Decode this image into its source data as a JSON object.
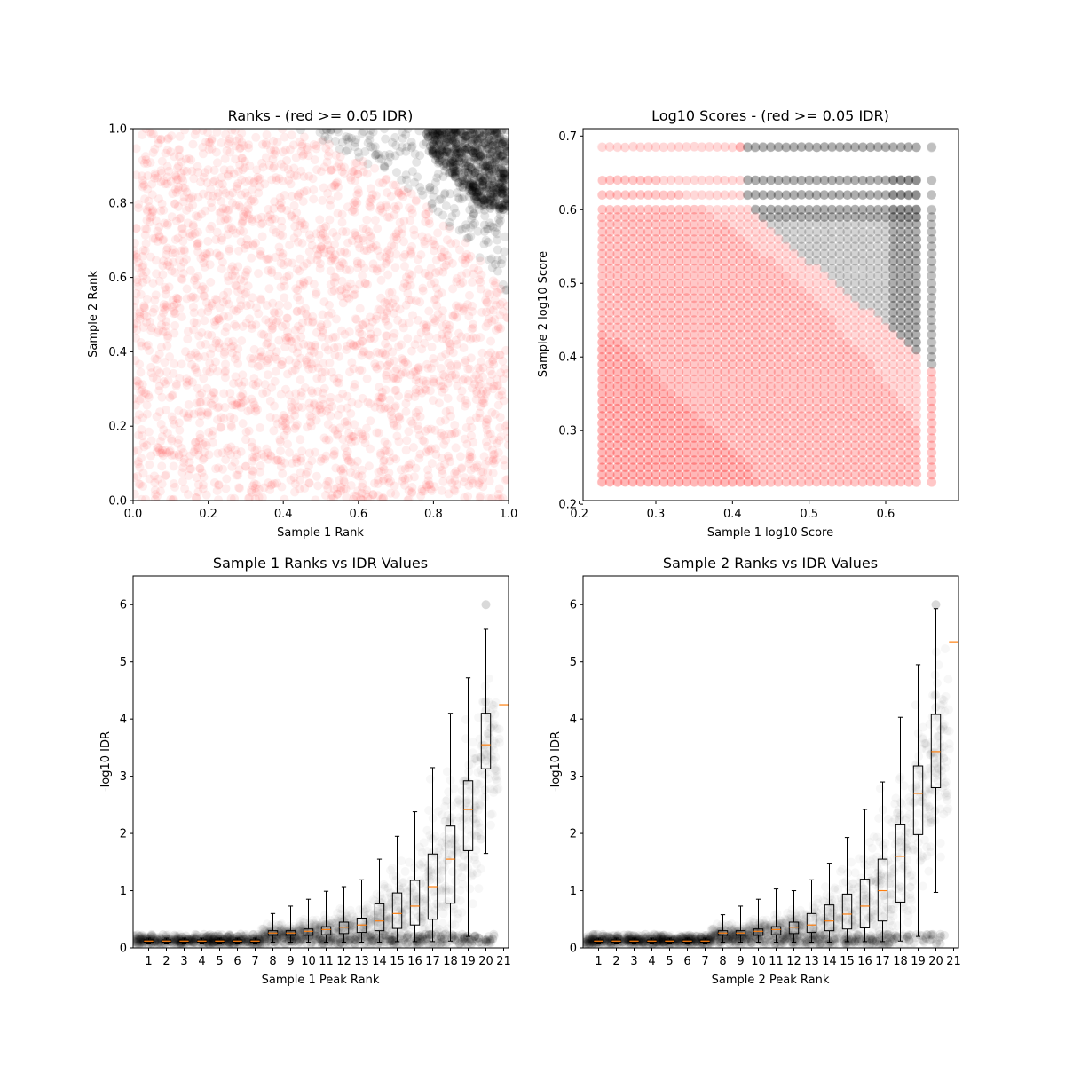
{
  "chart_data": [
    {
      "type": "scatter",
      "title": "Ranks - (red >= 0.05 IDR)",
      "xlabel": "Sample 1 Rank",
      "ylabel": "Sample 2 Rank",
      "xlim": [
        0.0,
        1.0
      ],
      "ylim": [
        0.0,
        1.0
      ],
      "x_ticks": [
        "0.0",
        "0.2",
        "0.4",
        "0.6",
        "0.8",
        "1.0"
      ],
      "y_ticks": [
        "0.0",
        "0.2",
        "0.4",
        "0.6",
        "0.8",
        "1.0"
      ],
      "grid": false,
      "legend": "none",
      "colors": {
        "high_idr": "#ff0000",
        "low_idr": "#000000"
      },
      "boundary": [
        [
          0.0,
          1.08
        ],
        [
          0.2,
          1.06
        ],
        [
          0.4,
          1.02
        ],
        [
          0.6,
          0.92
        ],
        [
          0.7,
          0.86
        ],
        [
          0.8,
          0.78
        ],
        [
          0.9,
          0.68
        ],
        [
          1.0,
          0.55
        ]
      ],
      "series": [
        {
          "name": "red >= 0.05 IDR",
          "color": "#ff0000",
          "region": "below_boundary"
        },
        {
          "color": "#000000",
          "region": "above_boundary"
        }
      ]
    },
    {
      "type": "scatter",
      "title": "Log10 Scores - (red >= 0.05 IDR)",
      "xlabel": "Sample 1 log10 Score",
      "ylabel": "Sample 2 log10 Score",
      "xlim": [
        0.205,
        0.695
      ],
      "ylim": [
        0.205,
        0.71
      ],
      "x_ticks": [
        "0.2",
        "0.3",
        "0.4",
        "0.5",
        "0.6"
      ],
      "y_ticks": [
        "0.2",
        "0.3",
        "0.4",
        "0.5",
        "0.6",
        "0.7"
      ],
      "grid": false,
      "legend": "none",
      "score_levels_x": [
        0.23,
        0.24,
        0.25,
        0.26,
        0.27,
        0.28,
        0.29,
        0.3,
        0.31,
        0.32,
        0.33,
        0.34,
        0.35,
        0.36,
        0.37,
        0.38,
        0.39,
        0.4,
        0.41,
        0.42,
        0.43,
        0.44,
        0.45,
        0.46,
        0.47,
        0.48,
        0.49,
        0.5,
        0.51,
        0.52,
        0.53,
        0.54,
        0.55,
        0.56,
        0.57,
        0.58,
        0.59,
        0.6,
        0.61,
        0.62,
        0.63,
        0.64,
        0.66
      ],
      "score_levels_y": [
        0.23,
        0.24,
        0.25,
        0.26,
        0.27,
        0.28,
        0.29,
        0.3,
        0.31,
        0.32,
        0.33,
        0.34,
        0.35,
        0.36,
        0.37,
        0.38,
        0.39,
        0.4,
        0.41,
        0.42,
        0.43,
        0.44,
        0.45,
        0.46,
        0.47,
        0.48,
        0.49,
        0.5,
        0.51,
        0.52,
        0.53,
        0.54,
        0.55,
        0.56,
        0.57,
        0.58,
        0.59,
        0.6,
        0.62,
        0.64,
        0.685
      ],
      "boundary": [
        [
          0.42,
          0.605
        ],
        [
          0.45,
          0.58
        ],
        [
          0.5,
          0.53
        ],
        [
          0.55,
          0.485
        ],
        [
          0.6,
          0.445
        ],
        [
          0.64,
          0.41
        ],
        [
          0.66,
          0.39
        ]
      ]
    },
    {
      "type": "box",
      "title": "Sample 1 Ranks vs IDR Values",
      "xlabel": "Sample 1 Peak Rank",
      "ylabel": "-log10 IDR",
      "ylim": [
        0,
        6.5
      ],
      "categories": [
        "1",
        "2",
        "3",
        "4",
        "5",
        "6",
        "7",
        "8",
        "9",
        "10",
        "11",
        "12",
        "13",
        "14",
        "15",
        "16",
        "17",
        "18",
        "19",
        "20",
        "21"
      ],
      "y_ticks": [
        "0",
        "1",
        "2",
        "3",
        "4",
        "5",
        "6"
      ],
      "boxes": [
        {
          "q1": 0.1,
          "median": 0.12,
          "q3": 0.14,
          "whislo": 0.07,
          "whishi": 0.17
        },
        {
          "q1": 0.1,
          "median": 0.12,
          "q3": 0.14,
          "whislo": 0.07,
          "whishi": 0.17
        },
        {
          "q1": 0.1,
          "median": 0.12,
          "q3": 0.14,
          "whislo": 0.07,
          "whishi": 0.17
        },
        {
          "q1": 0.1,
          "median": 0.12,
          "q3": 0.14,
          "whislo": 0.07,
          "whishi": 0.17
        },
        {
          "q1": 0.1,
          "median": 0.12,
          "q3": 0.14,
          "whislo": 0.07,
          "whishi": 0.17
        },
        {
          "q1": 0.1,
          "median": 0.12,
          "q3": 0.14,
          "whislo": 0.07,
          "whishi": 0.17
        },
        {
          "q1": 0.1,
          "median": 0.12,
          "q3": 0.14,
          "whislo": 0.07,
          "whishi": 0.17
        },
        {
          "q1": 0.22,
          "median": 0.26,
          "q3": 0.3,
          "whislo": 0.1,
          "whishi": 0.6
        },
        {
          "q1": 0.22,
          "median": 0.26,
          "q3": 0.3,
          "whislo": 0.1,
          "whishi": 0.73
        },
        {
          "q1": 0.22,
          "median": 0.29,
          "q3": 0.33,
          "whislo": 0.1,
          "whishi": 0.85
        },
        {
          "q1": 0.23,
          "median": 0.32,
          "q3": 0.37,
          "whislo": 0.1,
          "whishi": 0.99
        },
        {
          "q1": 0.25,
          "median": 0.36,
          "q3": 0.45,
          "whislo": 0.1,
          "whishi": 1.07
        },
        {
          "q1": 0.27,
          "median": 0.4,
          "q3": 0.52,
          "whislo": 0.1,
          "whishi": 1.19
        },
        {
          "q1": 0.3,
          "median": 0.47,
          "q3": 0.77,
          "whislo": 0.1,
          "whishi": 1.55
        },
        {
          "q1": 0.34,
          "median": 0.6,
          "q3": 0.96,
          "whislo": 0.11,
          "whishi": 1.95
        },
        {
          "q1": 0.4,
          "median": 0.73,
          "q3": 1.18,
          "whislo": 0.11,
          "whishi": 2.38
        },
        {
          "q1": 0.5,
          "median": 1.07,
          "q3": 1.64,
          "whislo": 0.11,
          "whishi": 3.15
        },
        {
          "q1": 0.78,
          "median": 1.55,
          "q3": 2.13,
          "whislo": 0.12,
          "whishi": 4.1
        },
        {
          "q1": 1.7,
          "median": 2.42,
          "q3": 2.92,
          "whislo": 0.2,
          "whishi": 4.72
        },
        {
          "q1": 3.13,
          "median": 3.55,
          "q3": 4.1,
          "whislo": 1.65,
          "whishi": 5.57
        },
        {
          "q1": 4.25,
          "median": 4.25,
          "q3": 4.25,
          "whislo": 4.25,
          "whishi": 4.25
        }
      ]
    },
    {
      "type": "box",
      "title": "Sample 2 Ranks vs IDR Values",
      "xlabel": "Sample 2 Peak Rank",
      "ylabel": "-log10 IDR",
      "ylim": [
        0,
        6.5
      ],
      "categories": [
        "1",
        "2",
        "3",
        "4",
        "5",
        "6",
        "7",
        "8",
        "9",
        "10",
        "11",
        "12",
        "13",
        "14",
        "15",
        "16",
        "17",
        "18",
        "19",
        "20",
        "21"
      ],
      "y_ticks": [
        "0",
        "1",
        "2",
        "3",
        "4",
        "5",
        "6"
      ],
      "boxes": [
        {
          "q1": 0.1,
          "median": 0.12,
          "q3": 0.14,
          "whislo": 0.07,
          "whishi": 0.17
        },
        {
          "q1": 0.1,
          "median": 0.12,
          "q3": 0.14,
          "whislo": 0.07,
          "whishi": 0.17
        },
        {
          "q1": 0.1,
          "median": 0.12,
          "q3": 0.14,
          "whislo": 0.07,
          "whishi": 0.17
        },
        {
          "q1": 0.1,
          "median": 0.12,
          "q3": 0.14,
          "whislo": 0.07,
          "whishi": 0.17
        },
        {
          "q1": 0.1,
          "median": 0.12,
          "q3": 0.14,
          "whislo": 0.07,
          "whishi": 0.17
        },
        {
          "q1": 0.1,
          "median": 0.12,
          "q3": 0.14,
          "whislo": 0.07,
          "whishi": 0.17
        },
        {
          "q1": 0.1,
          "median": 0.12,
          "q3": 0.14,
          "whislo": 0.07,
          "whishi": 0.17
        },
        {
          "q1": 0.22,
          "median": 0.26,
          "q3": 0.3,
          "whislo": 0.1,
          "whishi": 0.58
        },
        {
          "q1": 0.22,
          "median": 0.26,
          "q3": 0.3,
          "whislo": 0.1,
          "whishi": 0.73
        },
        {
          "q1": 0.22,
          "median": 0.29,
          "q3": 0.33,
          "whislo": 0.1,
          "whishi": 0.85
        },
        {
          "q1": 0.23,
          "median": 0.32,
          "q3": 0.37,
          "whislo": 0.1,
          "whishi": 1.03
        },
        {
          "q1": 0.25,
          "median": 0.36,
          "q3": 0.45,
          "whislo": 0.1,
          "whishi": 1.0
        },
        {
          "q1": 0.27,
          "median": 0.4,
          "q3": 0.6,
          "whislo": 0.1,
          "whishi": 1.19
        },
        {
          "q1": 0.3,
          "median": 0.47,
          "q3": 0.75,
          "whislo": 0.1,
          "whishi": 1.48
        },
        {
          "q1": 0.33,
          "median": 0.59,
          "q3": 0.94,
          "whislo": 0.11,
          "whishi": 1.93
        },
        {
          "q1": 0.35,
          "median": 0.73,
          "q3": 1.2,
          "whislo": 0.11,
          "whishi": 2.42
        },
        {
          "q1": 0.47,
          "median": 1.0,
          "q3": 1.55,
          "whislo": 0.11,
          "whishi": 2.9
        },
        {
          "q1": 0.8,
          "median": 1.6,
          "q3": 2.15,
          "whislo": 0.12,
          "whishi": 4.03
        },
        {
          "q1": 1.98,
          "median": 2.7,
          "q3": 3.18,
          "whislo": 0.2,
          "whishi": 4.95
        },
        {
          "q1": 2.8,
          "median": 3.43,
          "q3": 4.08,
          "whislo": 0.97,
          "whishi": 5.93
        },
        {
          "q1": 5.35,
          "median": 5.35,
          "q3": 5.35,
          "whislo": 5.35,
          "whishi": 5.35
        }
      ]
    }
  ]
}
